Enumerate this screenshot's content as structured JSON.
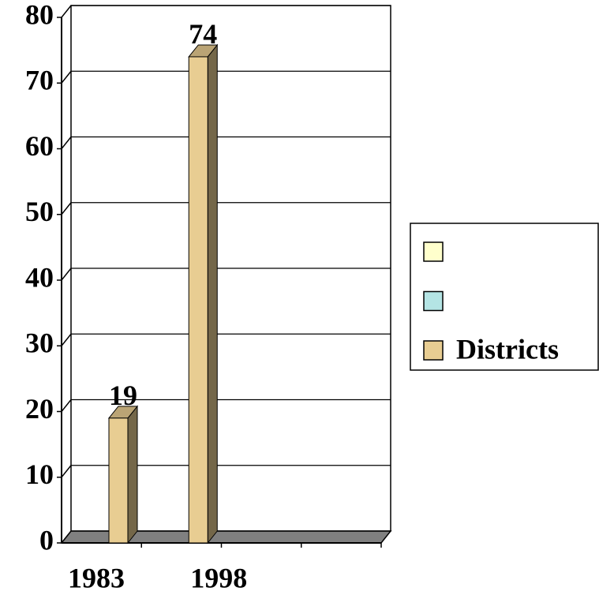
{
  "chart_data": {
    "type": "bar3d",
    "categories": [
      "1983",
      "1998",
      null,
      null
    ],
    "series": [
      {
        "name": null,
        "color": "#ffffcc",
        "values": [
          null,
          null,
          null,
          null
        ]
      },
      {
        "name": null,
        "color": "#b4e4e4",
        "values": [
          null,
          null,
          null,
          null
        ]
      },
      {
        "name": "Districts",
        "color": "#e8cd92",
        "values": [
          19,
          74,
          null,
          null
        ]
      }
    ],
    "ylim": [
      0,
      80
    ],
    "yticks": [
      0,
      10,
      20,
      30,
      40,
      50,
      60,
      70,
      80
    ],
    "grid": true,
    "legend": "right"
  }
}
